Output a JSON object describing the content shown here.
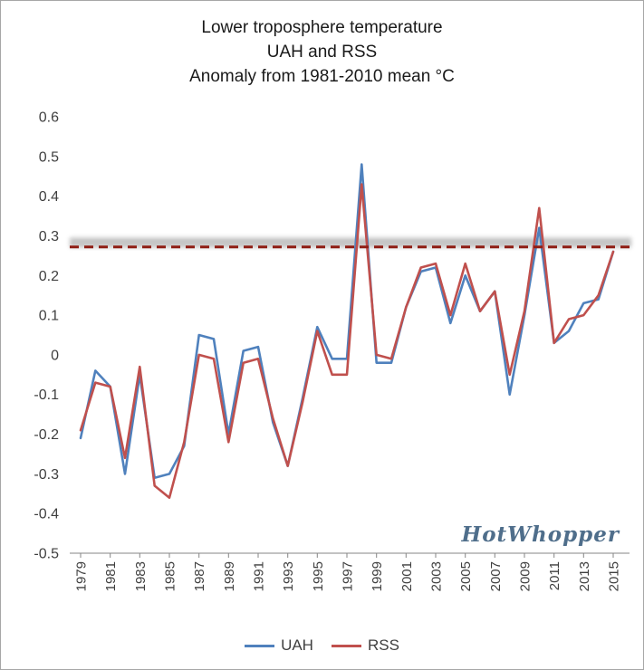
{
  "title": {
    "line1": "Lower troposphere temperature",
    "line2": "UAH and RSS",
    "line3": "Anomaly from 1981-2010 mean °C"
  },
  "watermark": "HotWhopper",
  "legend": [
    {
      "label": "UAH",
      "color": "#4f81bd"
    },
    {
      "label": "RSS",
      "color": "#c0504d"
    }
  ],
  "chart_data": {
    "type": "line",
    "title": "Lower troposphere temperature UAH and RSS — Anomaly from 1981-2010 mean °C",
    "xlabel": "",
    "ylabel": "",
    "ylim": [
      -0.5,
      0.6
    ],
    "grid": false,
    "legend_position": "bottom",
    "x": [
      1979,
      1980,
      1981,
      1982,
      1983,
      1984,
      1985,
      1986,
      1987,
      1988,
      1989,
      1990,
      1991,
      1992,
      1993,
      1994,
      1995,
      1996,
      1997,
      1998,
      1999,
      2000,
      2001,
      2002,
      2003,
      2004,
      2005,
      2006,
      2007,
      2008,
      2009,
      2010,
      2011,
      2012,
      2013,
      2014,
      2015
    ],
    "x_tick_labels": [
      "1979",
      "1981",
      "1983",
      "1985",
      "1987",
      "1989",
      "1991",
      "1993",
      "1995",
      "1997",
      "1999",
      "2001",
      "2003",
      "2005",
      "2007",
      "2009",
      "2011",
      "2013",
      "2015"
    ],
    "y_tick_labels": [
      "0.6",
      "0.5",
      "0.4",
      "0.3",
      "0.2",
      "0.1",
      "0",
      "-0.1",
      "-0.2",
      "-0.3",
      "-0.4",
      "-0.5"
    ],
    "series": [
      {
        "name": "UAH",
        "color": "#4f81bd",
        "values": [
          -0.21,
          -0.04,
          -0.08,
          -0.3,
          -0.05,
          -0.31,
          -0.3,
          -0.23,
          0.05,
          0.04,
          -0.2,
          0.01,
          0.02,
          -0.17,
          -0.28,
          -0.11,
          0.07,
          -0.01,
          -0.01,
          0.48,
          -0.02,
          -0.02,
          0.12,
          0.21,
          0.22,
          0.08,
          0.2,
          0.11,
          0.16,
          -0.1,
          0.1,
          0.32,
          0.03,
          0.06,
          0.13,
          0.14,
          0.26
        ]
      },
      {
        "name": "RSS",
        "color": "#c0504d",
        "values": [
          -0.19,
          -0.07,
          -0.08,
          -0.26,
          -0.03,
          -0.33,
          -0.36,
          -0.22,
          0.0,
          -0.01,
          -0.22,
          -0.02,
          -0.01,
          -0.16,
          -0.28,
          -0.12,
          0.06,
          -0.05,
          -0.05,
          0.43,
          0.0,
          -0.01,
          0.12,
          0.22,
          0.23,
          0.1,
          0.23,
          0.11,
          0.16,
          -0.05,
          0.11,
          0.37,
          0.03,
          0.09,
          0.1,
          0.15,
          0.26
        ]
      }
    ],
    "reference_lines": [
      {
        "name": "gray-band",
        "value": 0.283,
        "style": "blurred-gray-band",
        "color": "#8a8a8a"
      },
      {
        "name": "dark-red-dashed",
        "value": 0.272,
        "style": "dashed",
        "color": "#8f1d14"
      }
    ]
  }
}
